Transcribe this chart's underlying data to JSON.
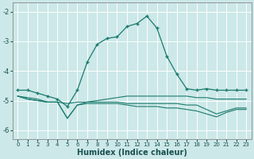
{
  "title": "",
  "xlabel": "Humidex (Indice chaleur)",
  "ylabel": "",
  "background_color": "#cce8e8",
  "grid_color": "#ffffff",
  "line_color": "#1a7a6e",
  "xlim": [
    -0.5,
    23.5
  ],
  "ylim": [
    -6.3,
    -1.7
  ],
  "yticks": [
    -6,
    -5,
    -4,
    -3,
    -2
  ],
  "xticks": [
    0,
    1,
    2,
    3,
    4,
    5,
    6,
    7,
    8,
    9,
    10,
    11,
    12,
    13,
    14,
    15,
    16,
    17,
    18,
    19,
    20,
    21,
    22,
    23
  ],
  "line1_x": [
    0,
    1,
    2,
    3,
    4,
    5,
    6,
    7,
    8,
    9,
    10,
    11,
    12,
    13,
    14,
    15,
    16,
    17,
    18,
    19,
    20,
    21,
    22,
    23
  ],
  "line1_y": [
    -4.65,
    -4.65,
    -4.75,
    -4.85,
    -4.95,
    -5.2,
    -4.65,
    -3.7,
    -3.1,
    -2.9,
    -2.85,
    -2.5,
    -2.4,
    -2.15,
    -2.55,
    -3.5,
    -4.1,
    -4.6,
    -4.65,
    -4.6,
    -4.65,
    -4.65,
    -4.65,
    -4.65
  ],
  "line2_x": [
    0,
    1,
    2,
    3,
    4,
    5,
    6,
    7,
    8,
    9,
    10,
    11,
    12,
    13,
    14,
    15,
    16,
    17,
    18,
    19,
    20,
    21,
    22,
    23
  ],
  "line2_y": [
    -4.85,
    -4.9,
    -4.95,
    -5.05,
    -5.05,
    -5.1,
    -5.05,
    -5.05,
    -5.0,
    -4.95,
    -4.9,
    -4.85,
    -4.85,
    -4.85,
    -4.85,
    -4.85,
    -4.85,
    -4.85,
    -4.9,
    -4.9,
    -4.95,
    -4.95,
    -4.95,
    -4.95
  ],
  "line3_x": [
    0,
    1,
    2,
    3,
    4,
    5,
    6,
    7,
    8,
    9,
    10,
    11,
    12,
    13,
    14,
    15,
    16,
    17,
    18,
    19,
    20,
    21,
    22,
    23
  ],
  "line3_y": [
    -4.85,
    -4.95,
    -5.0,
    -5.05,
    -5.05,
    -5.6,
    -5.15,
    -5.1,
    -5.1,
    -5.1,
    -5.1,
    -5.15,
    -5.2,
    -5.2,
    -5.2,
    -5.25,
    -5.25,
    -5.3,
    -5.35,
    -5.45,
    -5.55,
    -5.4,
    -5.3,
    -5.3
  ],
  "line4_x": [
    0,
    1,
    2,
    3,
    4,
    5,
    6,
    7,
    8,
    9,
    10,
    11,
    12,
    13,
    14,
    15,
    16,
    17,
    18,
    19,
    20,
    21,
    22,
    23
  ],
  "line4_y": [
    -4.85,
    -4.95,
    -5.0,
    -5.05,
    -5.05,
    -5.6,
    -5.15,
    -5.05,
    -5.05,
    -5.05,
    -5.05,
    -5.1,
    -5.1,
    -5.1,
    -5.1,
    -5.1,
    -5.1,
    -5.15,
    -5.15,
    -5.3,
    -5.45,
    -5.35,
    -5.25,
    -5.25
  ]
}
